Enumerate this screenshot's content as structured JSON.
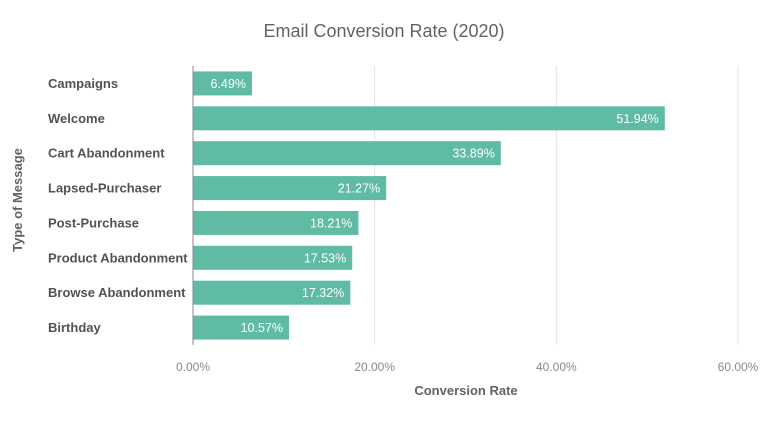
{
  "chart_data": {
    "type": "bar",
    "orientation": "horizontal",
    "title": "Email Conversion Rate (2020)",
    "xlabel": "Conversion Rate",
    "ylabel": "Type of Message",
    "categories": [
      "Campaigns",
      "Welcome",
      "Cart Abandonment",
      "Lapsed-Purchaser",
      "Post-Purchase",
      "Product Abandonment",
      "Browse Abandonment",
      "Birthday"
    ],
    "values": [
      6.49,
      51.94,
      33.89,
      21.27,
      18.21,
      17.53,
      17.32,
      10.57
    ],
    "data_labels": [
      "6.49%",
      "51.94%",
      "33.89%",
      "21.27%",
      "18.21%",
      "17.53%",
      "17.32%",
      "10.57%"
    ],
    "xlim": [
      0,
      60
    ],
    "xticks": [
      0,
      20,
      40,
      60
    ],
    "xtick_labels": [
      "0.00%",
      "20.00%",
      "40.00%",
      "60.00%"
    ],
    "grid": true,
    "bar_color": "#5fbba4"
  }
}
